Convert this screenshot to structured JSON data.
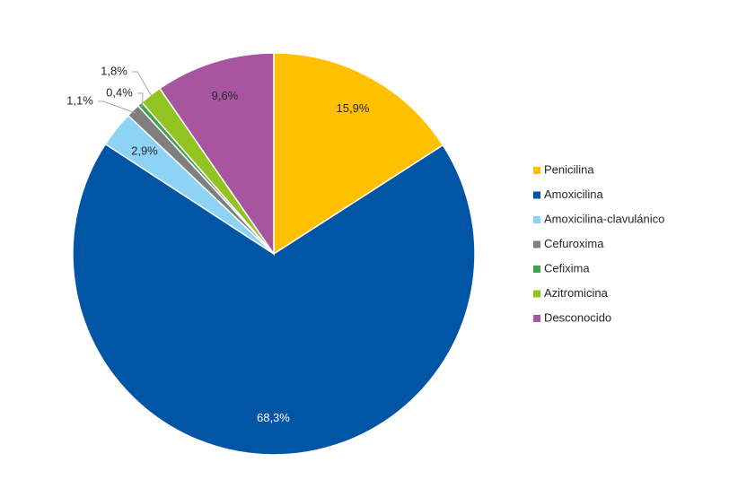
{
  "chart_data": {
    "type": "pie",
    "categories": [
      "Penicilina",
      "Amoxicilina",
      "Amoxicilina-clavulánico",
      "Cefuroxima",
      "Cefixima",
      "Azitromicina",
      "Desconocido"
    ],
    "values": [
      15.9,
      68.3,
      2.9,
      1.1,
      0.4,
      1.8,
      9.6
    ],
    "value_labels": [
      "15,9%",
      "68,3%",
      "2,9%",
      "1,1%",
      "0,4%",
      "1,8%",
      "9,6%"
    ],
    "colors": [
      "#FFC000",
      "#0055A5",
      "#8DD3F5",
      "#7F7F7F",
      "#3FA34D",
      "#92C321",
      "#A855A0"
    ],
    "legend": "right"
  }
}
